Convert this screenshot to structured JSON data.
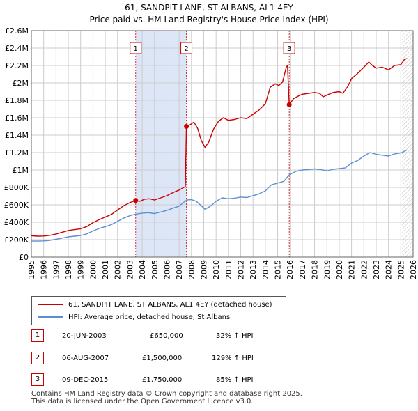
{
  "title_line1": "61, SANDPIT LANE, ST ALBANS, AL1 4EY",
  "title_line2": "Price paid vs. HM Land Registry's House Price Index (HPI)",
  "colors": {
    "property": "#cc0000",
    "hpi": "#5b8fcf",
    "shade": "#dde6f7",
    "grid": "#cccccc"
  },
  "chart_data": {
    "type": "line",
    "xlim": [
      1995,
      2026
    ],
    "ylim": [
      0,
      2600000
    ],
    "y_ticks": [
      {
        "value": 0,
        "label": "£0"
      },
      {
        "value": 200000,
        "label": "£200K"
      },
      {
        "value": 400000,
        "label": "£400K"
      },
      {
        "value": 600000,
        "label": "£600K"
      },
      {
        "value": 800000,
        "label": "£800K"
      },
      {
        "value": 1000000,
        "label": "£1M"
      },
      {
        "value": 1200000,
        "label": "£1.2M"
      },
      {
        "value": 1400000,
        "label": "£1.4M"
      },
      {
        "value": 1600000,
        "label": "£1.6M"
      },
      {
        "value": 1800000,
        "label": "£1.8M"
      },
      {
        "value": 2000000,
        "label": "£2M"
      },
      {
        "value": 2200000,
        "label": "£2.2M"
      },
      {
        "value": 2400000,
        "label": "£2.4M"
      },
      {
        "value": 2600000,
        "label": "£2.6M"
      }
    ],
    "x_ticks": [
      "1995",
      "1996",
      "1997",
      "1998",
      "1999",
      "2000",
      "2001",
      "2002",
      "2003",
      "2004",
      "2005",
      "2006",
      "2007",
      "2008",
      "2009",
      "2010",
      "2011",
      "2012",
      "2013",
      "2014",
      "2015",
      "2016",
      "2017",
      "2018",
      "2019",
      "2020",
      "2021",
      "2022",
      "2023",
      "2024",
      "2025",
      "2026"
    ],
    "shaded_periods": [
      [
        2003.47,
        2007.6
      ]
    ],
    "hatched_from": 2025.1,
    "series": [
      {
        "name": "61, SANDPIT LANE, ST ALBANS, AL1 4EY (detached house)",
        "points": [
          [
            1995.0,
            245000
          ],
          [
            1995.5,
            240000
          ],
          [
            1996.0,
            242000
          ],
          [
            1996.5,
            250000
          ],
          [
            1997.0,
            265000
          ],
          [
            1997.5,
            285000
          ],
          [
            1998.0,
            305000
          ],
          [
            1998.5,
            315000
          ],
          [
            1999.0,
            325000
          ],
          [
            1999.5,
            350000
          ],
          [
            2000.0,
            395000
          ],
          [
            2000.5,
            430000
          ],
          [
            2001.0,
            460000
          ],
          [
            2001.5,
            490000
          ],
          [
            2002.0,
            540000
          ],
          [
            2002.5,
            590000
          ],
          [
            2003.0,
            625000
          ],
          [
            2003.47,
            650000
          ],
          [
            2003.8,
            640000
          ],
          [
            2004.2,
            665000
          ],
          [
            2004.6,
            670000
          ],
          [
            2005.0,
            655000
          ],
          [
            2005.5,
            680000
          ],
          [
            2006.0,
            705000
          ],
          [
            2006.5,
            740000
          ],
          [
            2007.0,
            770000
          ],
          [
            2007.5,
            810000
          ],
          [
            2007.59,
            1500000
          ],
          [
            2007.9,
            1520000
          ],
          [
            2008.2,
            1550000
          ],
          [
            2008.5,
            1480000
          ],
          [
            2008.8,
            1340000
          ],
          [
            2009.1,
            1260000
          ],
          [
            2009.4,
            1320000
          ],
          [
            2009.8,
            1470000
          ],
          [
            2010.2,
            1560000
          ],
          [
            2010.6,
            1600000
          ],
          [
            2011.0,
            1570000
          ],
          [
            2011.5,
            1580000
          ],
          [
            2012.0,
            1600000
          ],
          [
            2012.5,
            1590000
          ],
          [
            2013.0,
            1640000
          ],
          [
            2013.5,
            1690000
          ],
          [
            2014.0,
            1760000
          ],
          [
            2014.4,
            1950000
          ],
          [
            2014.8,
            1990000
          ],
          [
            2015.1,
            1970000
          ],
          [
            2015.4,
            2010000
          ],
          [
            2015.7,
            2180000
          ],
          [
            2015.8,
            2200000
          ],
          [
            2015.94,
            1750000
          ],
          [
            2016.3,
            1820000
          ],
          [
            2016.7,
            1850000
          ],
          [
            2017.0,
            1870000
          ],
          [
            2017.5,
            1880000
          ],
          [
            2018.0,
            1890000
          ],
          [
            2018.4,
            1880000
          ],
          [
            2018.7,
            1840000
          ],
          [
            2019.0,
            1860000
          ],
          [
            2019.5,
            1890000
          ],
          [
            2020.0,
            1900000
          ],
          [
            2020.3,
            1880000
          ],
          [
            2020.7,
            1960000
          ],
          [
            2021.0,
            2050000
          ],
          [
            2021.5,
            2110000
          ],
          [
            2022.0,
            2180000
          ],
          [
            2022.4,
            2240000
          ],
          [
            2022.7,
            2200000
          ],
          [
            2023.0,
            2170000
          ],
          [
            2023.5,
            2180000
          ],
          [
            2024.0,
            2150000
          ],
          [
            2024.5,
            2200000
          ],
          [
            2025.0,
            2210000
          ],
          [
            2025.3,
            2270000
          ],
          [
            2025.5,
            2280000
          ]
        ]
      },
      {
        "name": "HPI: Average price, detached house, St Albans",
        "points": [
          [
            1995.0,
            185000
          ],
          [
            1995.5,
            183000
          ],
          [
            1996.0,
            186000
          ],
          [
            1996.5,
            192000
          ],
          [
            1997.0,
            205000
          ],
          [
            1997.5,
            218000
          ],
          [
            1998.0,
            232000
          ],
          [
            1998.5,
            240000
          ],
          [
            1999.0,
            248000
          ],
          [
            1999.5,
            266000
          ],
          [
            2000.0,
            300000
          ],
          [
            2000.5,
            327000
          ],
          [
            2001.0,
            350000
          ],
          [
            2001.5,
            372000
          ],
          [
            2002.0,
            410000
          ],
          [
            2002.5,
            448000
          ],
          [
            2003.0,
            475000
          ],
          [
            2003.47,
            493000
          ],
          [
            2004.0,
            505000
          ],
          [
            2004.5,
            510000
          ],
          [
            2005.0,
            500000
          ],
          [
            2005.5,
            517000
          ],
          [
            2006.0,
            536000
          ],
          [
            2006.5,
            562000
          ],
          [
            2007.0,
            585000
          ],
          [
            2007.59,
            655000
          ],
          [
            2008.0,
            660000
          ],
          [
            2008.4,
            640000
          ],
          [
            2008.8,
            590000
          ],
          [
            2009.1,
            550000
          ],
          [
            2009.5,
            580000
          ],
          [
            2010.0,
            640000
          ],
          [
            2010.5,
            680000
          ],
          [
            2011.0,
            670000
          ],
          [
            2011.5,
            676000
          ],
          [
            2012.0,
            690000
          ],
          [
            2012.5,
            684000
          ],
          [
            2013.0,
            705000
          ],
          [
            2013.5,
            726000
          ],
          [
            2014.0,
            760000
          ],
          [
            2014.5,
            830000
          ],
          [
            2015.0,
            850000
          ],
          [
            2015.5,
            870000
          ],
          [
            2015.94,
            945000
          ],
          [
            2016.5,
            985000
          ],
          [
            2017.0,
            1000000
          ],
          [
            2017.5,
            1005000
          ],
          [
            2018.0,
            1012000
          ],
          [
            2018.5,
            1005000
          ],
          [
            2019.0,
            990000
          ],
          [
            2019.5,
            1008000
          ],
          [
            2020.0,
            1015000
          ],
          [
            2020.5,
            1025000
          ],
          [
            2021.0,
            1080000
          ],
          [
            2021.5,
            1110000
          ],
          [
            2022.0,
            1160000
          ],
          [
            2022.5,
            1200000
          ],
          [
            2023.0,
            1180000
          ],
          [
            2023.5,
            1170000
          ],
          [
            2024.0,
            1160000
          ],
          [
            2024.5,
            1185000
          ],
          [
            2025.0,
            1195000
          ],
          [
            2025.5,
            1230000
          ]
        ]
      }
    ],
    "markers": [
      {
        "label": "1",
        "date": 2003.47,
        "value": 650000
      },
      {
        "label": "2",
        "date": 2007.59,
        "value": 1500000
      },
      {
        "label": "3",
        "date": 2015.94,
        "value": 1750000
      }
    ]
  },
  "legend": {
    "property_label": "61, SANDPIT LANE, ST ALBANS, AL1 4EY (detached house)",
    "hpi_label": "HPI: Average price, detached house, St Albans"
  },
  "sales": [
    {
      "num": "1",
      "date": "20-JUN-2003",
      "price": "£650,000",
      "hpi": "32% ↑ HPI"
    },
    {
      "num": "2",
      "date": "06-AUG-2007",
      "price": "£1,500,000",
      "hpi": "129% ↑ HPI"
    },
    {
      "num": "3",
      "date": "09-DEC-2015",
      "price": "£1,750,000",
      "hpi": "85% ↑ HPI"
    }
  ],
  "footer_line1": "Contains HM Land Registry data © Crown copyright and database right 2025.",
  "footer_line2": "This data is licensed under the Open Government Licence v3.0."
}
